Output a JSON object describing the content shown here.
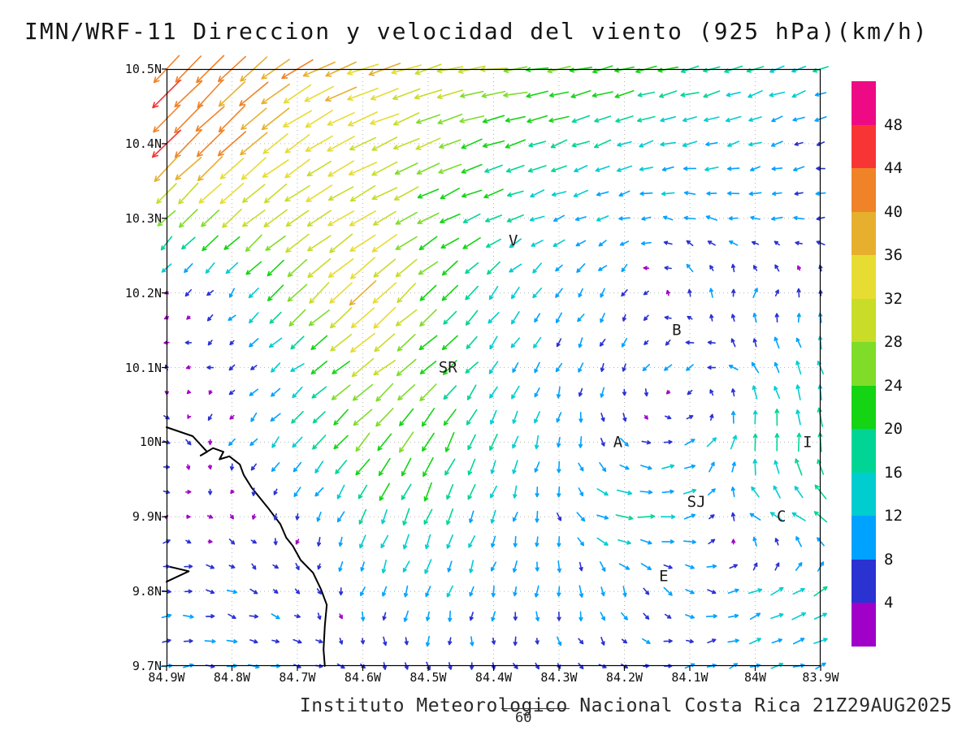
{
  "title": "IMN/WRF-11 Direccion y velocidad del viento (925 hPa)(km/h)",
  "footer": {
    "caption": "Instituto Meteorologico Nacional Costa Rica",
    "datetime": "21Z29AUG2025",
    "forecast_hour": "60"
  },
  "chart_data": {
    "type": "vector_field",
    "title": "IMN/WRF-11 Direccion y velocidad del viento (925 hPa)(km/h)",
    "units": "km/h",
    "level": "925 hPa",
    "grid_step": 0.1,
    "grid_lons": [
      84.9,
      84.8,
      84.7,
      84.6,
      84.5,
      84.4,
      84.3,
      84.2,
      84.1,
      84.0,
      83.9
    ],
    "grid_lats": [
      10.5,
      10.4,
      10.3,
      10.2,
      10.1,
      10.0,
      9.9,
      9.8,
      9.7
    ],
    "lon_tick_labels": [
      "84.9W",
      "84.8W",
      "84.7W",
      "84.6W",
      "84.5W",
      "84.4W",
      "84.3W",
      "84.2W",
      "84.1W",
      "84W",
      "83.9W"
    ],
    "lat_tick_labels": [
      "10.5N",
      "10.4N",
      "10.3N",
      "10.2N",
      "10.1N",
      "10N",
      "9.9N",
      "9.8N",
      "9.7N"
    ],
    "u": [
      [
        -30,
        -30,
        -34,
        -36,
        -30,
        -28,
        -24,
        -22,
        -20,
        -17,
        -15
      ],
      [
        -32,
        -30,
        -28,
        -30,
        -26,
        -22,
        -18,
        -16,
        -14,
        -12,
        -8
      ],
      [
        -18,
        -22,
        -26,
        -28,
        -22,
        -18,
        -12,
        -10,
        -10,
        -10,
        -9
      ],
      [
        -3,
        -6,
        -20,
        -28,
        -18,
        -10,
        -6,
        -4,
        -2,
        2,
        0
      ],
      [
        -3,
        -4,
        -12,
        -24,
        -18,
        -8,
        -4,
        -3,
        -8,
        -6,
        -4
      ],
      [
        6,
        -4,
        -10,
        -16,
        -12,
        -6,
        -2,
        6,
        10,
        2,
        -2
      ],
      [
        3,
        2,
        -2,
        -6,
        -6,
        -4,
        2,
        18,
        12,
        -10,
        -14
      ],
      [
        8,
        8,
        4,
        -2,
        -4,
        -2,
        0,
        4,
        8,
        12,
        14
      ],
      [
        10,
        10,
        8,
        4,
        2,
        2,
        4,
        6,
        8,
        10,
        12
      ]
    ],
    "v": [
      [
        -30,
        -28,
        -20,
        -12,
        -8,
        -4,
        -4,
        -5,
        -6,
        -5,
        -5
      ],
      [
        -32,
        -26,
        -20,
        -14,
        -10,
        -8,
        -6,
        -5,
        -4,
        -3,
        -2
      ],
      [
        -18,
        -18,
        -18,
        -16,
        -10,
        -8,
        -4,
        -2,
        2,
        1,
        0
      ],
      [
        -3,
        -6,
        -20,
        -26,
        -16,
        -14,
        -8,
        -6,
        6,
        8,
        6
      ],
      [
        2,
        -2,
        -10,
        -18,
        -14,
        -12,
        -8,
        -6,
        -6,
        10,
        14
      ],
      [
        -3,
        -4,
        -12,
        -18,
        -20,
        -16,
        -10,
        -6,
        4,
        18,
        20
      ],
      [
        1,
        -2,
        -6,
        -14,
        -16,
        -12,
        -8,
        -2,
        2,
        8,
        10
      ],
      [
        0,
        -2,
        -4,
        -8,
        -10,
        -10,
        -10,
        -8,
        -6,
        6,
        8
      ],
      [
        2,
        0,
        -2,
        -4,
        -6,
        -6,
        -4,
        -2,
        2,
        4,
        4
      ]
    ],
    "colorbar": {
      "levels": [
        4,
        8,
        12,
        16,
        20,
        24,
        28,
        32,
        36,
        40,
        44,
        48
      ],
      "colors": [
        "#a000c8",
        "#2a32d2",
        "#00a2ff",
        "#00cdd0",
        "#00d595",
        "#14d414",
        "#7fdc28",
        "#c8dc28",
        "#e6dc32",
        "#e6af2d",
        "#f08228",
        "#f73535",
        "#ee0a84"
      ]
    },
    "cities": [
      {
        "label": "V",
        "lon": 84.37,
        "lat": 10.27
      },
      {
        "label": "B",
        "lon": 84.12,
        "lat": 10.15
      },
      {
        "label": "SR",
        "lon": 84.47,
        "lat": 10.1
      },
      {
        "label": "A",
        "lon": 84.21,
        "lat": 10.0
      },
      {
        "label": "SJ",
        "lon": 84.09,
        "lat": 9.92
      },
      {
        "label": "C",
        "lon": 83.96,
        "lat": 9.9
      },
      {
        "label": "E",
        "lon": 84.14,
        "lat": 9.82
      },
      {
        "label": "I",
        "lon": 83.92,
        "lat": 10.0
      }
    ],
    "coastline": [
      [
        84.9,
        10.02
      ],
      [
        84.86,
        10.008
      ],
      [
        84.838,
        9.987
      ],
      [
        84.848,
        9.982
      ],
      [
        84.829,
        9.992
      ],
      [
        84.813,
        9.987
      ],
      [
        84.819,
        9.977
      ],
      [
        84.804,
        9.981
      ],
      [
        84.788,
        9.97
      ],
      [
        84.782,
        9.956
      ],
      [
        84.77,
        9.939
      ],
      [
        84.745,
        9.912
      ],
      [
        84.726,
        9.89
      ],
      [
        84.717,
        9.872
      ],
      [
        84.707,
        9.861
      ],
      [
        84.695,
        9.842
      ],
      [
        84.676,
        9.825
      ],
      [
        84.664,
        9.803
      ],
      [
        84.655,
        9.782
      ],
      [
        84.658,
        9.754
      ],
      [
        84.66,
        9.722
      ],
      [
        84.658,
        9.7
      ]
    ],
    "coastline_spur": [
      [
        84.9,
        9.834
      ],
      [
        84.866,
        9.827
      ],
      [
        84.9,
        9.813
      ]
    ],
    "arrow_grid": {
      "nx": 31,
      "ny": 25
    }
  }
}
